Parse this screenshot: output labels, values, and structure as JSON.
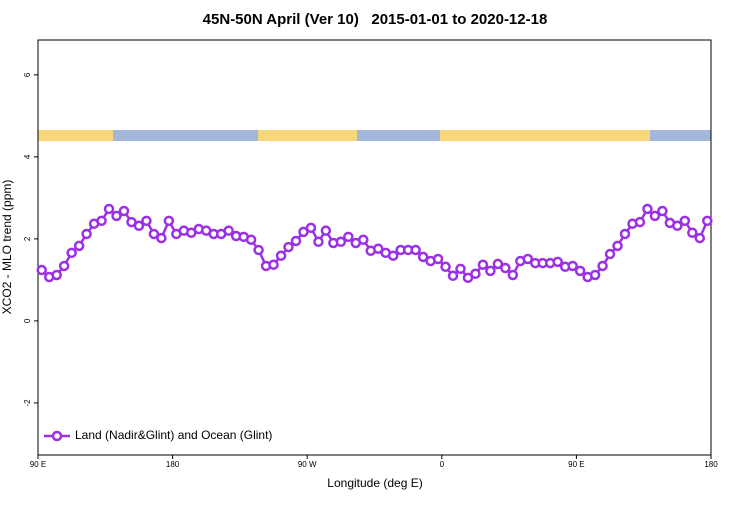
{
  "chart_data": {
    "type": "line",
    "title": "45N-50N April (Ver 10)   2015-01-01 to 2020-12-18",
    "x_label": "Longitude (deg E)",
    "y_label": "XCO2 - MLO trend (ppm)",
    "x": [
      92.5,
      97.5,
      102.5,
      107.5,
      112.5,
      117.5,
      122.5,
      127.5,
      132.5,
      137.5,
      142.5,
      147.5,
      152.5,
      157.5,
      162.5,
      167.5,
      172.5,
      177.5,
      182.5,
      187.5,
      192.5,
      197.5,
      202.5,
      207.5,
      212.5,
      217.5,
      222.5,
      227.5,
      232.5,
      237.5,
      242.5,
      247.5,
      252.5,
      257.5,
      262.5,
      267.5,
      272.5,
      277.5,
      282.5,
      287.5,
      292.5,
      297.5,
      302.5,
      307.5,
      312.5,
      317.5,
      322.5,
      327.5,
      332.5,
      337.5,
      342.5,
      347.5,
      352.5,
      357.5,
      362.5,
      367.5,
      372.5,
      377.5,
      382.5,
      387.5,
      392.5,
      397.5,
      402.5,
      407.5,
      412.5,
      417.5,
      422.5,
      427.5,
      432.5,
      437.5,
      442.5,
      447.5,
      452.5,
      457.5,
      462.5,
      467.5,
      472.5,
      477.5,
      482.5,
      487.5,
      492.5,
      497.5,
      502.5,
      507.5,
      512.5,
      517.5,
      522.5,
      527.5,
      532.5,
      537.5
    ],
    "series": [
      {
        "name": "Land (Nadir&Glint) and Ocean (Glint)",
        "color": "#9b30e6",
        "values": [
          1.24,
          1.07,
          1.12,
          1.34,
          1.66,
          1.83,
          2.12,
          2.37,
          2.44,
          2.73,
          2.56,
          2.68,
          2.41,
          2.32,
          2.44,
          2.12,
          2.02,
          2.44,
          2.12,
          2.2,
          2.15,
          2.24,
          2.2,
          2.12,
          2.12,
          2.2,
          2.07,
          2.05,
          1.98,
          1.73,
          1.34,
          1.37,
          1.59,
          1.8,
          1.95,
          2.17,
          2.27,
          1.93,
          2.2,
          1.9,
          1.93,
          2.05,
          1.9,
          1.98,
          1.71,
          1.76,
          1.66,
          1.59,
          1.73,
          1.73,
          1.73,
          1.56,
          1.46,
          1.51,
          1.32,
          1.1,
          1.27,
          1.05,
          1.15,
          1.37,
          1.22,
          1.39,
          1.29,
          1.12,
          1.46,
          1.51,
          1.41,
          1.41,
          1.41,
          1.44,
          1.32,
          1.34,
          1.22,
          1.07,
          1.12,
          1.34,
          1.63,
          1.83,
          2.12,
          2.37,
          2.41,
          2.73,
          2.56,
          2.68,
          2.39,
          2.32,
          2.44,
          2.15,
          2.02,
          2.44
        ]
      }
    ],
    "xlim": [
      90,
      540
    ],
    "xticks": [
      {
        "value": 90,
        "label": "90 E"
      },
      180,
      {
        "value": 270,
        "label": "90 W"
      },
      {
        "value": 360,
        "label": "0"
      },
      {
        "value": 450,
        "label": "90 E"
      },
      {
        "value": 540,
        "label": "180"
      }
    ],
    "ylim": [
      -3.27,
      6.85
    ],
    "yticks": [
      -2,
      0,
      2,
      4,
      6
    ],
    "grid": false,
    "legend": "bottom-left"
  }
}
